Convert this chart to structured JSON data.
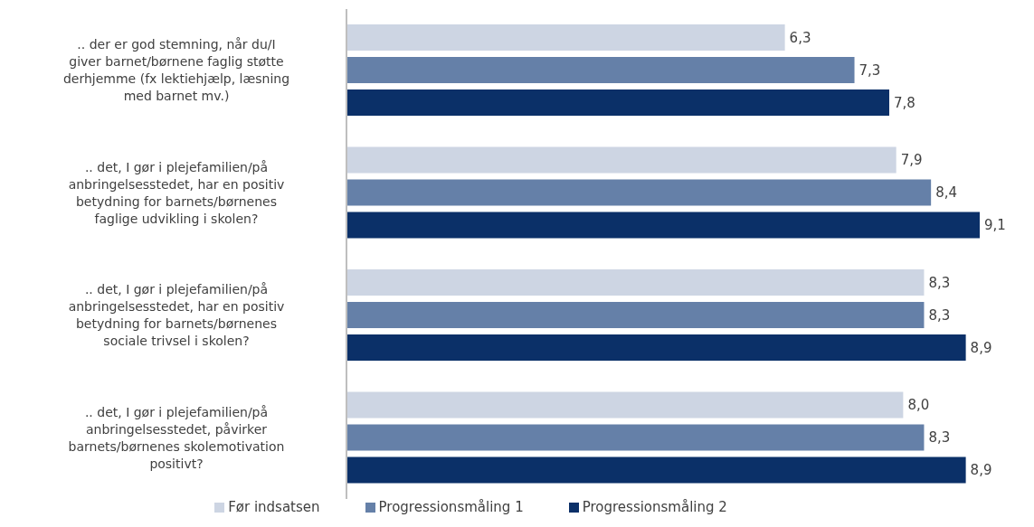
{
  "chart_data": {
    "type": "bar",
    "orientation": "horizontal",
    "categories": [
      ".. der er god stemning, når du/I giver barnet/børnene faglig støtte derhjemme (fx lektiehjælp, læsning med barnet mv.)",
      ".. det, I gør i plejefamilien/på anbringelsesstedet, har en positiv betydning for barnets/børnenes faglige udvikling i skolen?",
      ".. det, I gør i plejefamilien/på anbringelsesstedet, har en positiv betydning for barnets/børnenes sociale trivsel i skolen?",
      ".. det, I gør i plejefamilien/på anbringelsesstedet, påvirker barnets/børnenes skolemotivation positivt?"
    ],
    "series": [
      {
        "name": "Før indsatsen",
        "color": "#cdd5e3",
        "values": [
          6.3,
          7.9,
          8.3,
          8.0
        ],
        "value_labels": [
          "6,3",
          "7,9",
          "8,3",
          "8,0"
        ]
      },
      {
        "name": "Progressionsmåling 1",
        "color": "#6580a8",
        "values": [
          7.3,
          8.4,
          8.3,
          8.3
        ],
        "value_labels": [
          "7,3",
          "8,4",
          "8,3",
          "8,3"
        ]
      },
      {
        "name": "Progressionsmåling 2",
        "color": "#0b3068",
        "values": [
          7.8,
          9.1,
          8.9,
          8.9
        ],
        "value_labels": [
          "7,8",
          "9,1",
          "8,9",
          "8,9"
        ]
      }
    ],
    "legend": "bottom"
  }
}
